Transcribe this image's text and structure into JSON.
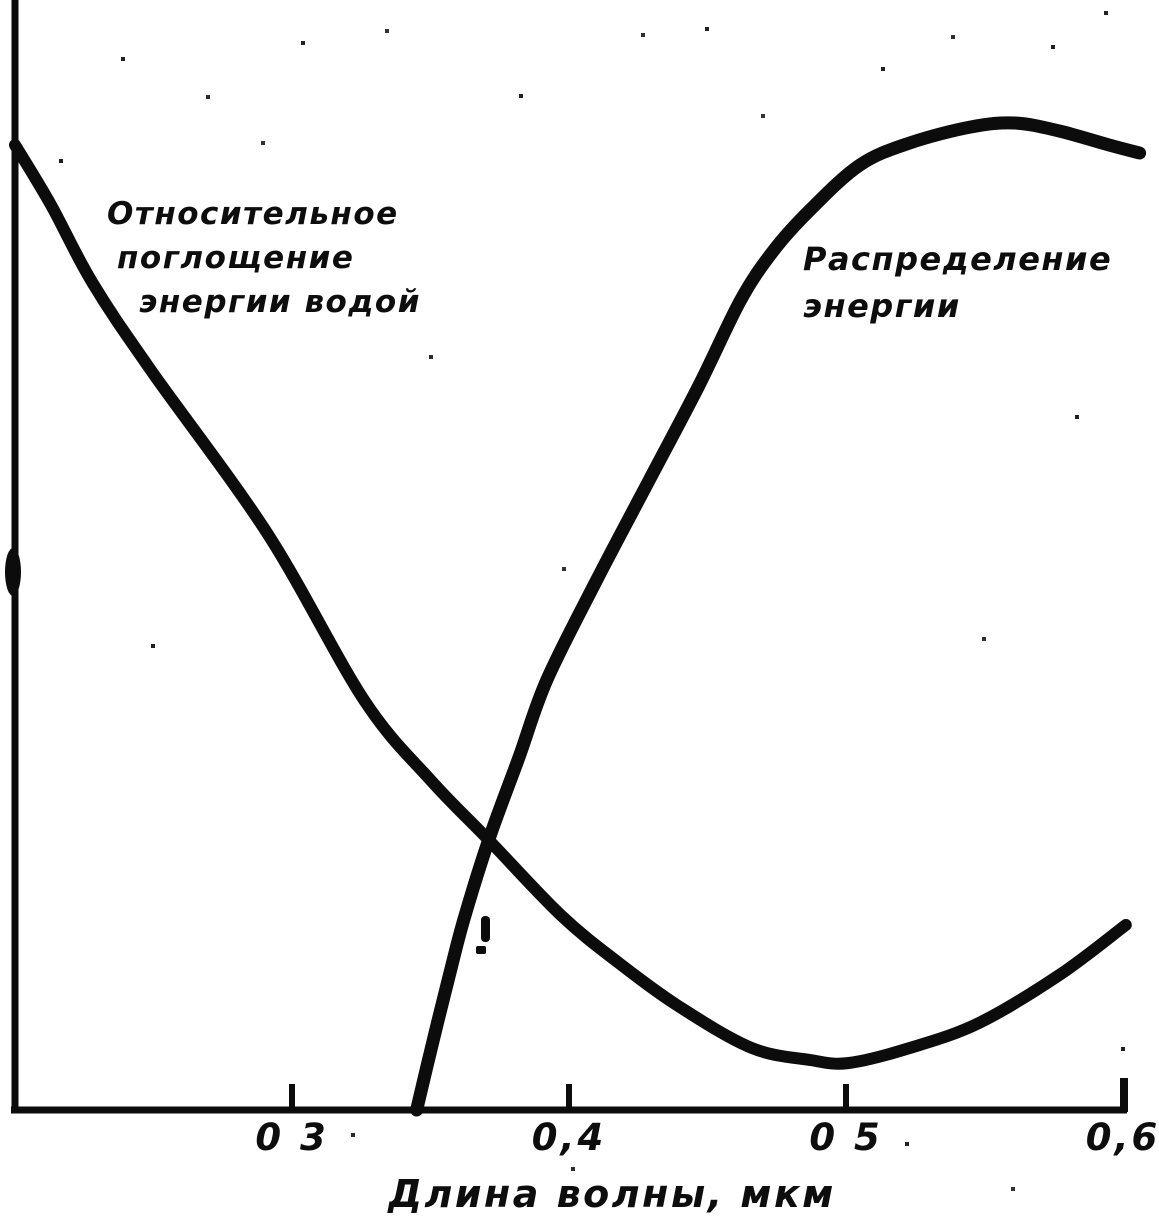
{
  "figure": {
    "background": "#ffffff",
    "ink_color": "#0c0c0c"
  },
  "labels": {
    "absorption": {
      "lines": [
        "Относительное",
        "поглощение",
        "энергии водой"
      ]
    },
    "distribution": {
      "lines": [
        "Распределение",
        "энергии"
      ]
    }
  },
  "x_axis": {
    "title": "Длина волны, мкм",
    "tick_values": [
      0.3,
      0.4,
      0.5,
      0.6
    ],
    "tick_labels": [
      "0 3",
      "0,4",
      "0 5",
      "0,6"
    ]
  },
  "chart_data": {
    "type": "line",
    "title": "",
    "xlabel": "Длина волны, мкм",
    "ylabel": "",
    "x_range": [
      0.2,
      0.6
    ],
    "y_range": [
      0,
      1
    ],
    "grid": false,
    "legend_position": "inline-annotations",
    "series": [
      {
        "id": "absorption-curve",
        "name": "Относительное поглощение энергии водой",
        "points": [
          [
            0.2,
            0.965
          ],
          [
            0.213,
            0.905
          ],
          [
            0.228,
            0.827
          ],
          [
            0.249,
            0.74
          ],
          [
            0.291,
            0.577
          ],
          [
            0.326,
            0.41
          ],
          [
            0.35,
            0.33
          ],
          [
            0.371,
            0.27
          ],
          [
            0.397,
            0.195
          ],
          [
            0.418,
            0.147
          ],
          [
            0.44,
            0.103
          ],
          [
            0.466,
            0.062
          ],
          [
            0.487,
            0.05
          ],
          [
            0.501,
            0.047
          ],
          [
            0.523,
            0.062
          ],
          [
            0.548,
            0.087
          ],
          [
            0.577,
            0.135
          ],
          [
            0.601,
            0.185
          ]
        ]
      },
      {
        "id": "distribution-curve",
        "name": "Распределение энергии",
        "points": [
          [
            0.345,
            0.0
          ],
          [
            0.351,
            0.07
          ],
          [
            0.357,
            0.137
          ],
          [
            0.362,
            0.19
          ],
          [
            0.371,
            0.27
          ],
          [
            0.382,
            0.353
          ],
          [
            0.392,
            0.43
          ],
          [
            0.41,
            0.53
          ],
          [
            0.429,
            0.63
          ],
          [
            0.447,
            0.725
          ],
          [
            0.462,
            0.81
          ],
          [
            0.474,
            0.86
          ],
          [
            0.487,
            0.9
          ],
          [
            0.505,
            0.945
          ],
          [
            0.523,
            0.967
          ],
          [
            0.545,
            0.983
          ],
          [
            0.561,
            0.987
          ],
          [
            0.577,
            0.979
          ],
          [
            0.595,
            0.965
          ],
          [
            0.606,
            0.957
          ]
        ]
      }
    ]
  }
}
